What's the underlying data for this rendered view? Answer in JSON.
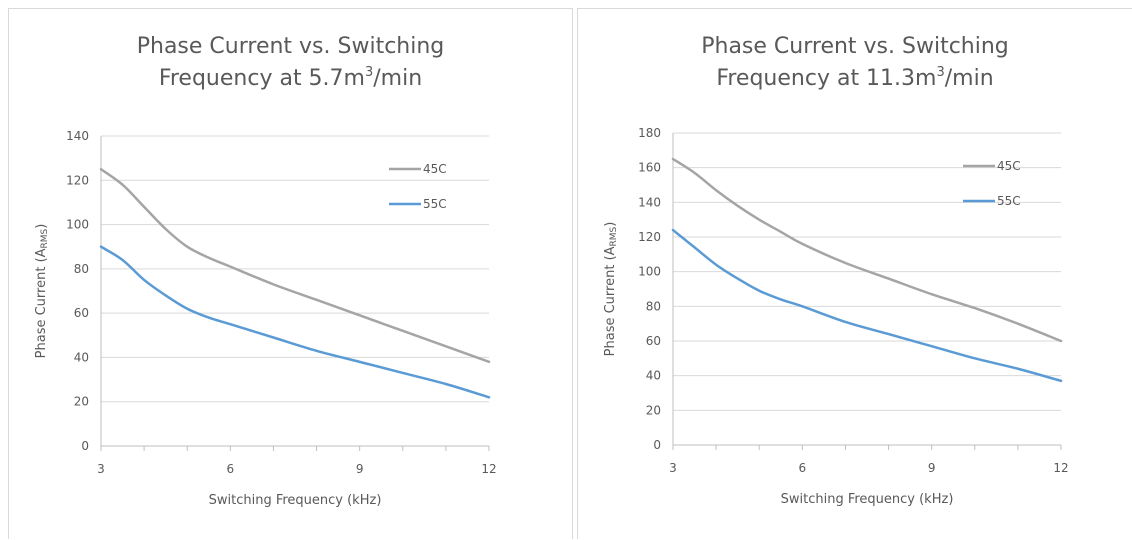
{
  "chart_data": [
    {
      "type": "line",
      "title_line1": "Phase Current vs. Switching",
      "title_line2_pre": "Frequency at 5.7m",
      "title_line2_sup": "3",
      "title_line2_post": "/min",
      "xlabel": "Switching Frequency (kHz)",
      "ylabel_pre": "Phase Current (A",
      "ylabel_sub": "RMS",
      "ylabel_post": ")",
      "xlim": [
        3,
        12
      ],
      "ylim": [
        0,
        140
      ],
      "x_ticks": [
        "3",
        "6",
        "9",
        "12"
      ],
      "y_ticks": [
        "0",
        "20",
        "40",
        "60",
        "80",
        "100",
        "120",
        "140"
      ],
      "grid": true,
      "legend_position": "top-right",
      "series": [
        {
          "name": "45C",
          "color": "#a5a5a5",
          "x": [
            3,
            3.5,
            4,
            4.5,
            5,
            5.5,
            6,
            7,
            8,
            9,
            10,
            11,
            12
          ],
          "y": [
            125,
            118,
            108,
            98,
            90,
            85,
            81,
            73,
            66,
            59,
            52,
            45,
            38
          ]
        },
        {
          "name": "55C",
          "color": "#5b9bd5",
          "x": [
            3,
            3.5,
            4,
            4.5,
            5,
            5.5,
            6,
            7,
            8,
            9,
            10,
            11,
            12
          ],
          "y": [
            90,
            84,
            75,
            68,
            62,
            58,
            55,
            49,
            43,
            38,
            33,
            28,
            22
          ]
        }
      ]
    },
    {
      "type": "line",
      "title_line1": "Phase Current vs. Switching",
      "title_line2_pre": "Frequency at 11.3m",
      "title_line2_sup": "3",
      "title_line2_post": "/min",
      "xlabel": "Switching Frequency (kHz)",
      "ylabel_pre": "Phase Current (A",
      "ylabel_sub": "RMS",
      "ylabel_post": ")",
      "xlim": [
        3,
        12
      ],
      "ylim": [
        0,
        180
      ],
      "x_ticks": [
        "3",
        "6",
        "9",
        "12"
      ],
      "y_ticks": [
        "0",
        "20",
        "40",
        "60",
        "80",
        "100",
        "120",
        "140",
        "160",
        "180"
      ],
      "grid": true,
      "legend_position": "top-right",
      "series": [
        {
          "name": "45C",
          "color": "#a5a5a5",
          "x": [
            3,
            3.5,
            4,
            4.5,
            5,
            5.5,
            6,
            7,
            8,
            9,
            10,
            11,
            12
          ],
          "y": [
            165,
            157,
            147,
            138,
            130,
            123,
            116,
            105,
            96,
            87,
            79,
            70,
            60
          ]
        },
        {
          "name": "55C",
          "color": "#5b9bd5",
          "x": [
            3,
            3.5,
            4,
            4.5,
            5,
            5.5,
            6,
            7,
            8,
            9,
            10,
            11,
            12
          ],
          "y": [
            124,
            114,
            104,
            96,
            89,
            84,
            80,
            71,
            64,
            57,
            50,
            44,
            37
          ]
        }
      ]
    }
  ]
}
